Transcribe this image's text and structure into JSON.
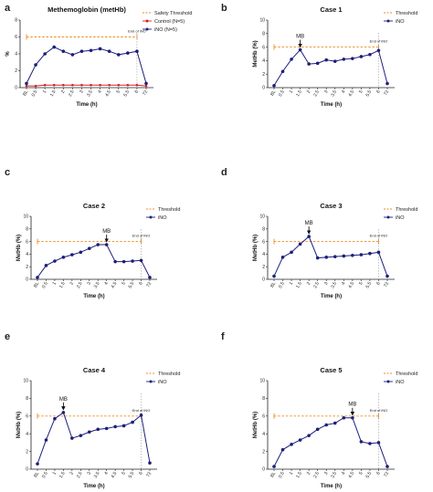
{
  "colors": {
    "threshold": "#F08A1C",
    "ino": "#1C1F7A",
    "control": "#D62020",
    "axis": "#222222",
    "end_line": "#999999"
  },
  "chart_data": [
    {
      "panel": "a",
      "type": "line",
      "title": "Methemoglobin (metHb)",
      "xlabel": "Time (h)",
      "ylabel": "%",
      "ylim": [
        0,
        8
      ],
      "yticks": [
        0,
        2,
        4,
        6,
        8
      ],
      "categories": [
        "BL",
        "0.5",
        "1",
        "1.5",
        "2",
        "2.5",
        "3",
        "3.5",
        "4",
        "4.5",
        "5",
        "5.5",
        "6",
        "72"
      ],
      "threshold": {
        "value": 6,
        "label": "Safety Threshold"
      },
      "end_label": "End of iNO",
      "series": [
        {
          "name": "Control (N=5)",
          "values": [
            0.2,
            0.2,
            0.3,
            0.3,
            0.3,
            0.3,
            0.3,
            0.3,
            0.3,
            0.3,
            0.3,
            0.3,
            0.3,
            0.2
          ]
        },
        {
          "name": "iNO (N=5)",
          "values": [
            0.5,
            2.7,
            4.0,
            4.8,
            4.3,
            3.9,
            4.3,
            4.4,
            4.6,
            4.3,
            3.9,
            4.1,
            4.3,
            0.5
          ]
        }
      ]
    },
    {
      "panel": "b",
      "type": "line",
      "title": "Case 1",
      "xlabel": "Time (h)",
      "ylabel": "MetHb (%)",
      "ylim": [
        0,
        10
      ],
      "yticks": [
        0,
        2,
        4,
        6,
        8,
        10
      ],
      "categories": [
        "BL",
        "0.5",
        "1",
        "1.5",
        "2",
        "2.5",
        "3",
        "3.5",
        "4",
        "4.5",
        "5",
        "5.5",
        "6",
        "72"
      ],
      "threshold": {
        "value": 6,
        "label": "Threshold"
      },
      "end_label": "End of iNO",
      "annotation": {
        "text": "MB",
        "category": "1.5"
      },
      "series": [
        {
          "name": "iNO",
          "values": [
            0.3,
            2.4,
            4.2,
            5.6,
            3.5,
            3.6,
            4.1,
            3.9,
            4.2,
            4.3,
            4.6,
            4.9,
            5.5,
            0.6
          ]
        }
      ]
    },
    {
      "panel": "c",
      "type": "line",
      "title": "Case 2",
      "xlabel": "Time (h)",
      "ylabel": "MetHb (%)",
      "ylim": [
        0,
        10
      ],
      "yticks": [
        0,
        2,
        4,
        6,
        8,
        10
      ],
      "categories": [
        "BL",
        "0.5",
        "1",
        "1.5",
        "2",
        "2.5",
        "3",
        "3.5",
        "4",
        "4.5",
        "5",
        "5.5",
        "6",
        "72"
      ],
      "threshold": {
        "value": 6,
        "label": "Threshold"
      },
      "end_label": "End of iNO",
      "annotation": {
        "text": "MB",
        "category": "4"
      },
      "series": [
        {
          "name": "iNO",
          "values": [
            0.3,
            2.2,
            2.9,
            3.5,
            3.9,
            4.3,
            4.9,
            5.5,
            5.5,
            2.8,
            2.8,
            2.9,
            3.0,
            0.3
          ]
        }
      ]
    },
    {
      "panel": "d",
      "type": "line",
      "title": "Case 3",
      "xlabel": "Time (h)",
      "ylabel": "MetHb (%)",
      "ylim": [
        0,
        10
      ],
      "yticks": [
        0,
        2,
        4,
        6,
        8,
        10
      ],
      "categories": [
        "BL",
        "0.5",
        "1",
        "1.5",
        "2",
        "2.5",
        "3",
        "3.5",
        "4",
        "4.5",
        "5",
        "5.5",
        "6",
        "72"
      ],
      "threshold": {
        "value": 6,
        "label": "Threshold"
      },
      "end_label": "End of iNO",
      "annotation": {
        "text": "MB",
        "category": "2"
      },
      "series": [
        {
          "name": "iNO",
          "values": [
            0.5,
            3.5,
            4.3,
            5.6,
            6.8,
            3.4,
            3.5,
            3.6,
            3.7,
            3.8,
            3.9,
            4.1,
            4.3,
            0.5
          ]
        }
      ]
    },
    {
      "panel": "e",
      "type": "line",
      "title": "Case 4",
      "xlabel": "Time (h)",
      "ylabel": "MetHb (%)",
      "ylim": [
        0,
        10
      ],
      "yticks": [
        0,
        2,
        4,
        6,
        8,
        10
      ],
      "categories": [
        "BL",
        "0.5",
        "1",
        "1.5",
        "2",
        "2.5",
        "3",
        "3.5",
        "4",
        "4.5",
        "5",
        "5.5",
        "6",
        "72"
      ],
      "threshold": {
        "value": 6,
        "label": "Threshold"
      },
      "end_label": "End of iNO",
      "annotation": {
        "text": "MB",
        "category": "1.5"
      },
      "series": [
        {
          "name": "iNO",
          "values": [
            0.6,
            3.3,
            5.7,
            6.4,
            3.5,
            3.8,
            4.2,
            4.5,
            4.6,
            4.8,
            4.9,
            5.3,
            6.1,
            0.7
          ]
        }
      ]
    },
    {
      "panel": "f",
      "type": "line",
      "title": "Case 5",
      "xlabel": "Time (h)",
      "ylabel": "MetHb (%)",
      "ylim": [
        0,
        10
      ],
      "yticks": [
        0,
        2,
        4,
        6,
        8,
        10
      ],
      "categories": [
        "BL",
        "0.5",
        "1",
        "1.5",
        "2",
        "2.5",
        "3",
        "3.5",
        "4",
        "4.5",
        "5",
        "5.5",
        "6",
        "72"
      ],
      "threshold": {
        "value": 6,
        "label": "Threshold"
      },
      "end_label": "End of iNO",
      "annotation": {
        "text": "MB",
        "category": "4.5"
      },
      "series": [
        {
          "name": "iNO",
          "values": [
            0.3,
            2.2,
            2.8,
            3.3,
            3.8,
            4.5,
            5.0,
            5.2,
            5.8,
            5.8,
            3.1,
            2.9,
            3.0,
            0.3
          ]
        }
      ]
    }
  ]
}
